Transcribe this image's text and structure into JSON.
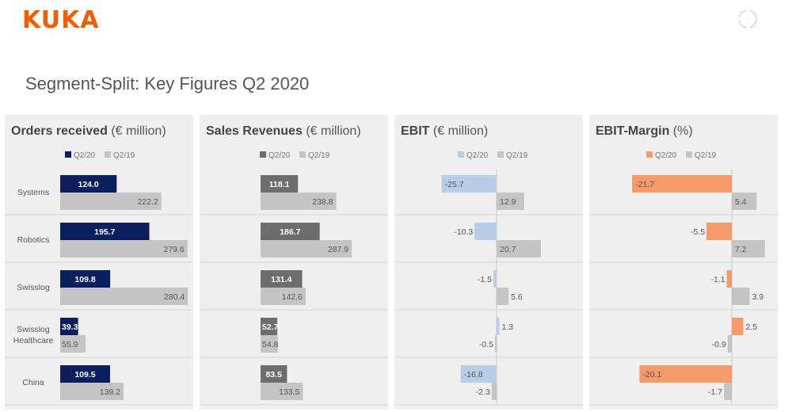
{
  "header": {
    "logo": "KUKA",
    "title": "Segment-Split: Key Figures Q2 2020"
  },
  "colors": {
    "logo": "#f25c05",
    "orders_q220": "#0b1f5e",
    "sales_q220": "#6d6d6d",
    "ebit_q220": "#b8cde8",
    "margin_q220": "#f79a6a",
    "q219": "#c4c4c4",
    "panel_bg": "#efefef"
  },
  "chart_data": [
    {
      "type": "bar",
      "title": "Orders received",
      "unit": "(€ million)",
      "categories": [
        "Systems",
        "Robotics",
        "Swisslog",
        "Swisslog Healthcare",
        "China"
      ],
      "series": [
        {
          "name": "Q2/20",
          "values": [
            124.0,
            195.7,
            109.8,
            39.3,
            109.5
          ]
        },
        {
          "name": "Q2/19",
          "values": [
            222.2,
            279.6,
            280.4,
            55.9,
            139.2
          ]
        }
      ],
      "labels": {
        "Q2/20": [
          "124.0",
          "195.7",
          "109.8",
          "39.3",
          "109.5"
        ],
        "Q2/19": [
          "222.2",
          "279.6",
          "280.4",
          "55.9",
          "139.2"
        ]
      },
      "legend": "top"
    },
    {
      "type": "bar",
      "title": "Sales Revenues",
      "unit": "(€ million)",
      "categories": [
        "Systems",
        "Robotics",
        "Swisslog",
        "Swisslog Healthcare",
        "China"
      ],
      "series": [
        {
          "name": "Q2/20",
          "values": [
            118.1,
            186.7,
            131.4,
            52.7,
            83.5
          ]
        },
        {
          "name": "Q2/19",
          "values": [
            238.8,
            287.9,
            142.6,
            54.8,
            133.5
          ]
        }
      ],
      "labels": {
        "Q2/20": [
          "118.1",
          "186.7",
          "131.4",
          "52.7",
          "83.5"
        ],
        "Q2/19": [
          "238.8",
          "287.9",
          "142.6",
          "54.8",
          "133.5"
        ]
      },
      "legend": "top"
    },
    {
      "type": "bar",
      "title": "EBIT",
      "unit": "(€ million)",
      "categories": [
        "Systems",
        "Robotics",
        "Swisslog",
        "Swisslog Healthcare",
        "China"
      ],
      "series": [
        {
          "name": "Q2/20",
          "values": [
            -25.7,
            -10.3,
            -1.5,
            1.3,
            -16.8
          ]
        },
        {
          "name": "Q2/19",
          "values": [
            12.9,
            20.7,
            5.6,
            -0.5,
            -2.3
          ]
        }
      ],
      "labels": {
        "Q2/20": [
          "-25.7",
          "-10.3",
          "-1.5",
          "1.3",
          "-16.8"
        ],
        "Q2/19": [
          "12.9",
          "20.7",
          "5.6",
          "-0.5",
          "-2.3"
        ]
      },
      "legend": "top"
    },
    {
      "type": "bar",
      "title": "EBIT-Margin",
      "unit": "(%)",
      "categories": [
        "Systems",
        "Robotics",
        "Swisslog",
        "Swisslog Healthcare",
        "China"
      ],
      "series": [
        {
          "name": "Q2/20",
          "values": [
            -21.7,
            -5.5,
            -1.1,
            2.5,
            -20.1
          ]
        },
        {
          "name": "Q2/19",
          "values": [
            5.4,
            7.2,
            3.9,
            -0.9,
            -1.7
          ]
        }
      ],
      "labels": {
        "Q2/20": [
          "-21.7",
          "-5.5",
          "-1.1",
          "2.5",
          "-20.1"
        ],
        "Q2/19": [
          "5.4",
          "7.2",
          "3.9",
          "-0.9",
          "-1.7"
        ]
      },
      "legend": "top"
    }
  ]
}
